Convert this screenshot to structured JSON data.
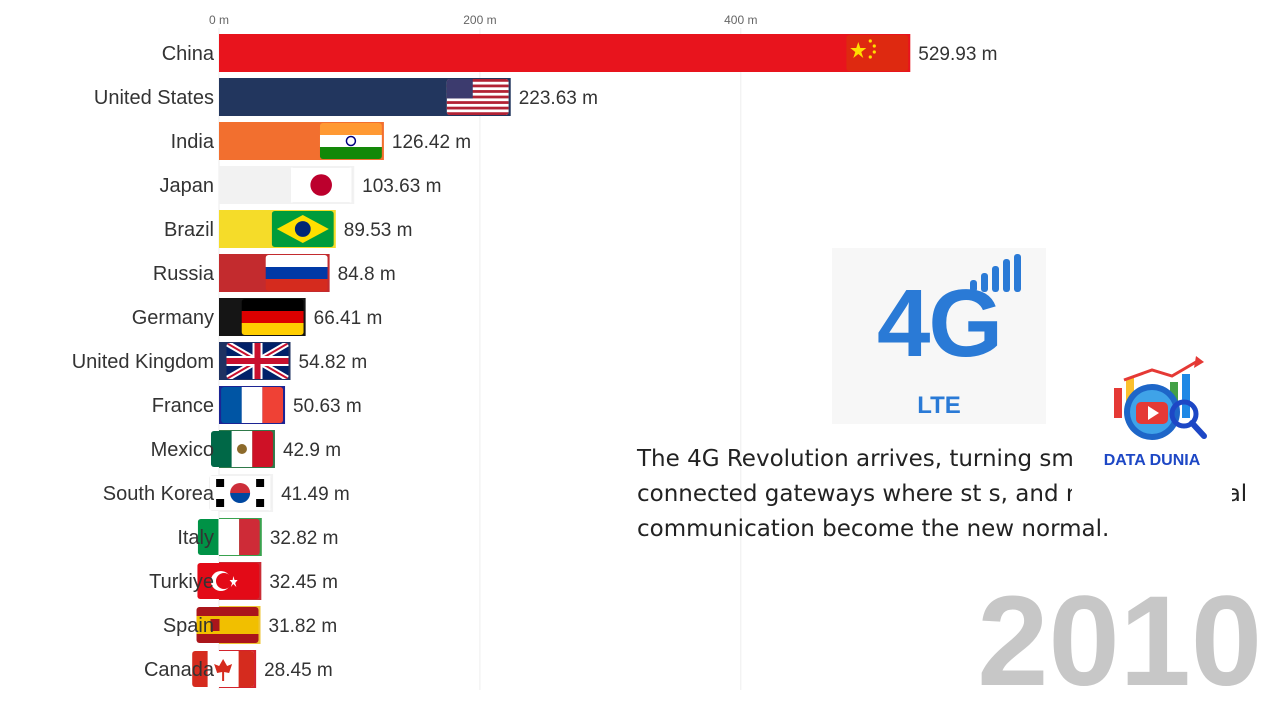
{
  "chart_data": {
    "type": "bar",
    "orientation": "horizontal",
    "xlim": [
      0,
      600
    ],
    "ticks": [
      0,
      200,
      400
    ],
    "tick_labels": [
      "0 m",
      "200 m",
      "400 m"
    ],
    "grid": true,
    "categories": [
      "China",
      "United States",
      "India",
      "Japan",
      "Brazil",
      "Russia",
      "Germany",
      "United Kingdom",
      "France",
      "Mexico",
      "South Korea",
      "Italy",
      "Turkiye",
      "Spain",
      "Canada"
    ],
    "values": [
      529.93,
      223.63,
      126.42,
      103.63,
      89.53,
      84.8,
      66.41,
      54.82,
      50.63,
      42.9,
      41.49,
      32.82,
      32.45,
      31.82,
      28.45
    ],
    "value_labels": [
      "529.93 m",
      "223.63 m",
      "126.42 m",
      "103.63 m",
      "89.53 m",
      "84.8 m",
      "66.41 m",
      "54.82 m",
      "50.63 m",
      "42.9 m",
      "41.49 m",
      "32.82 m",
      "32.45 m",
      "31.82 m",
      "28.45 m"
    ],
    "colors": [
      "#e8141d",
      "#22365e",
      "#f26f2f",
      "#f2f2f2",
      "#f5dc29",
      "#c32b2e",
      "#151515",
      "#1f3262",
      "#1c2494",
      "#2f7a4a",
      "#f2f2f2",
      "#39a24f",
      "#c92c36",
      "#eec434",
      "#d3232c"
    ],
    "flags": [
      "china-flag",
      "usa-flag",
      "india-flag",
      "japan-flag",
      "brazil-flag",
      "russia-flag",
      "germany-flag",
      "uk-flag",
      "france-flag",
      "mexico-flag",
      "south-korea-flag",
      "italy-flag",
      "turkiye-flag",
      "spain-flag",
      "canada-flag"
    ]
  },
  "badge": {
    "big": "4G",
    "small": "LTE",
    "icon": "signal-bars-icon",
    "color": "#2a7ad6"
  },
  "caption": "The 4G Revolution arrives, turning sma          o always-connected gateways where st                    s, and real-time global communication become the new normal.",
  "brand": {
    "name": "DATA DUNIA",
    "icon": "globe-play-magnifier-logo",
    "color": "#1d47c5"
  },
  "year": "2010"
}
